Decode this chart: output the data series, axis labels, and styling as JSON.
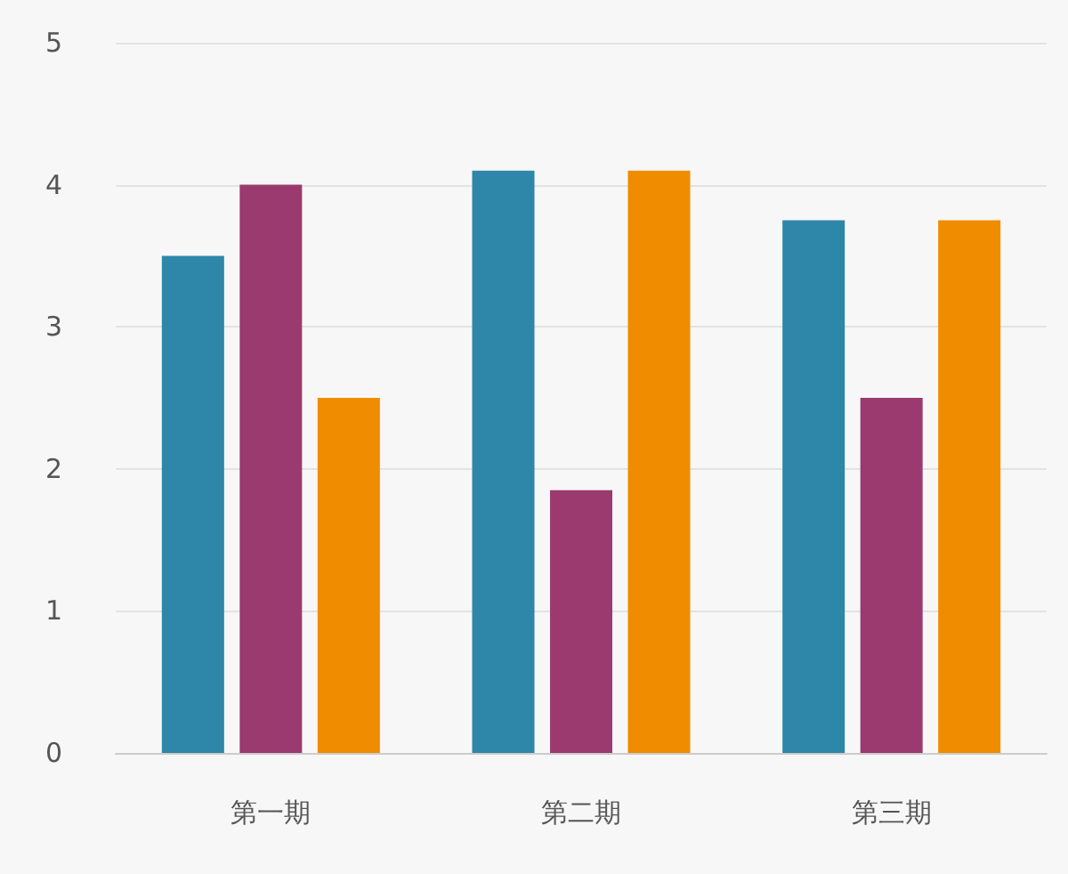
{
  "chart_data": {
    "type": "bar",
    "categories": [
      "第一期",
      "第二期",
      "第三期"
    ],
    "series": [
      {
        "color": "#2e86a8",
        "values": [
          3.5,
          4.1,
          3.75
        ]
      },
      {
        "color": "#9b3a6e",
        "values": [
          4.0,
          1.85,
          2.5
        ]
      },
      {
        "color": "#f08c00",
        "values": [
          2.5,
          4.1,
          3.75
        ]
      }
    ],
    "ylim": [
      0,
      5
    ],
    "yticks": [
      0,
      1,
      2,
      3,
      4,
      5
    ],
    "grid": "y"
  }
}
